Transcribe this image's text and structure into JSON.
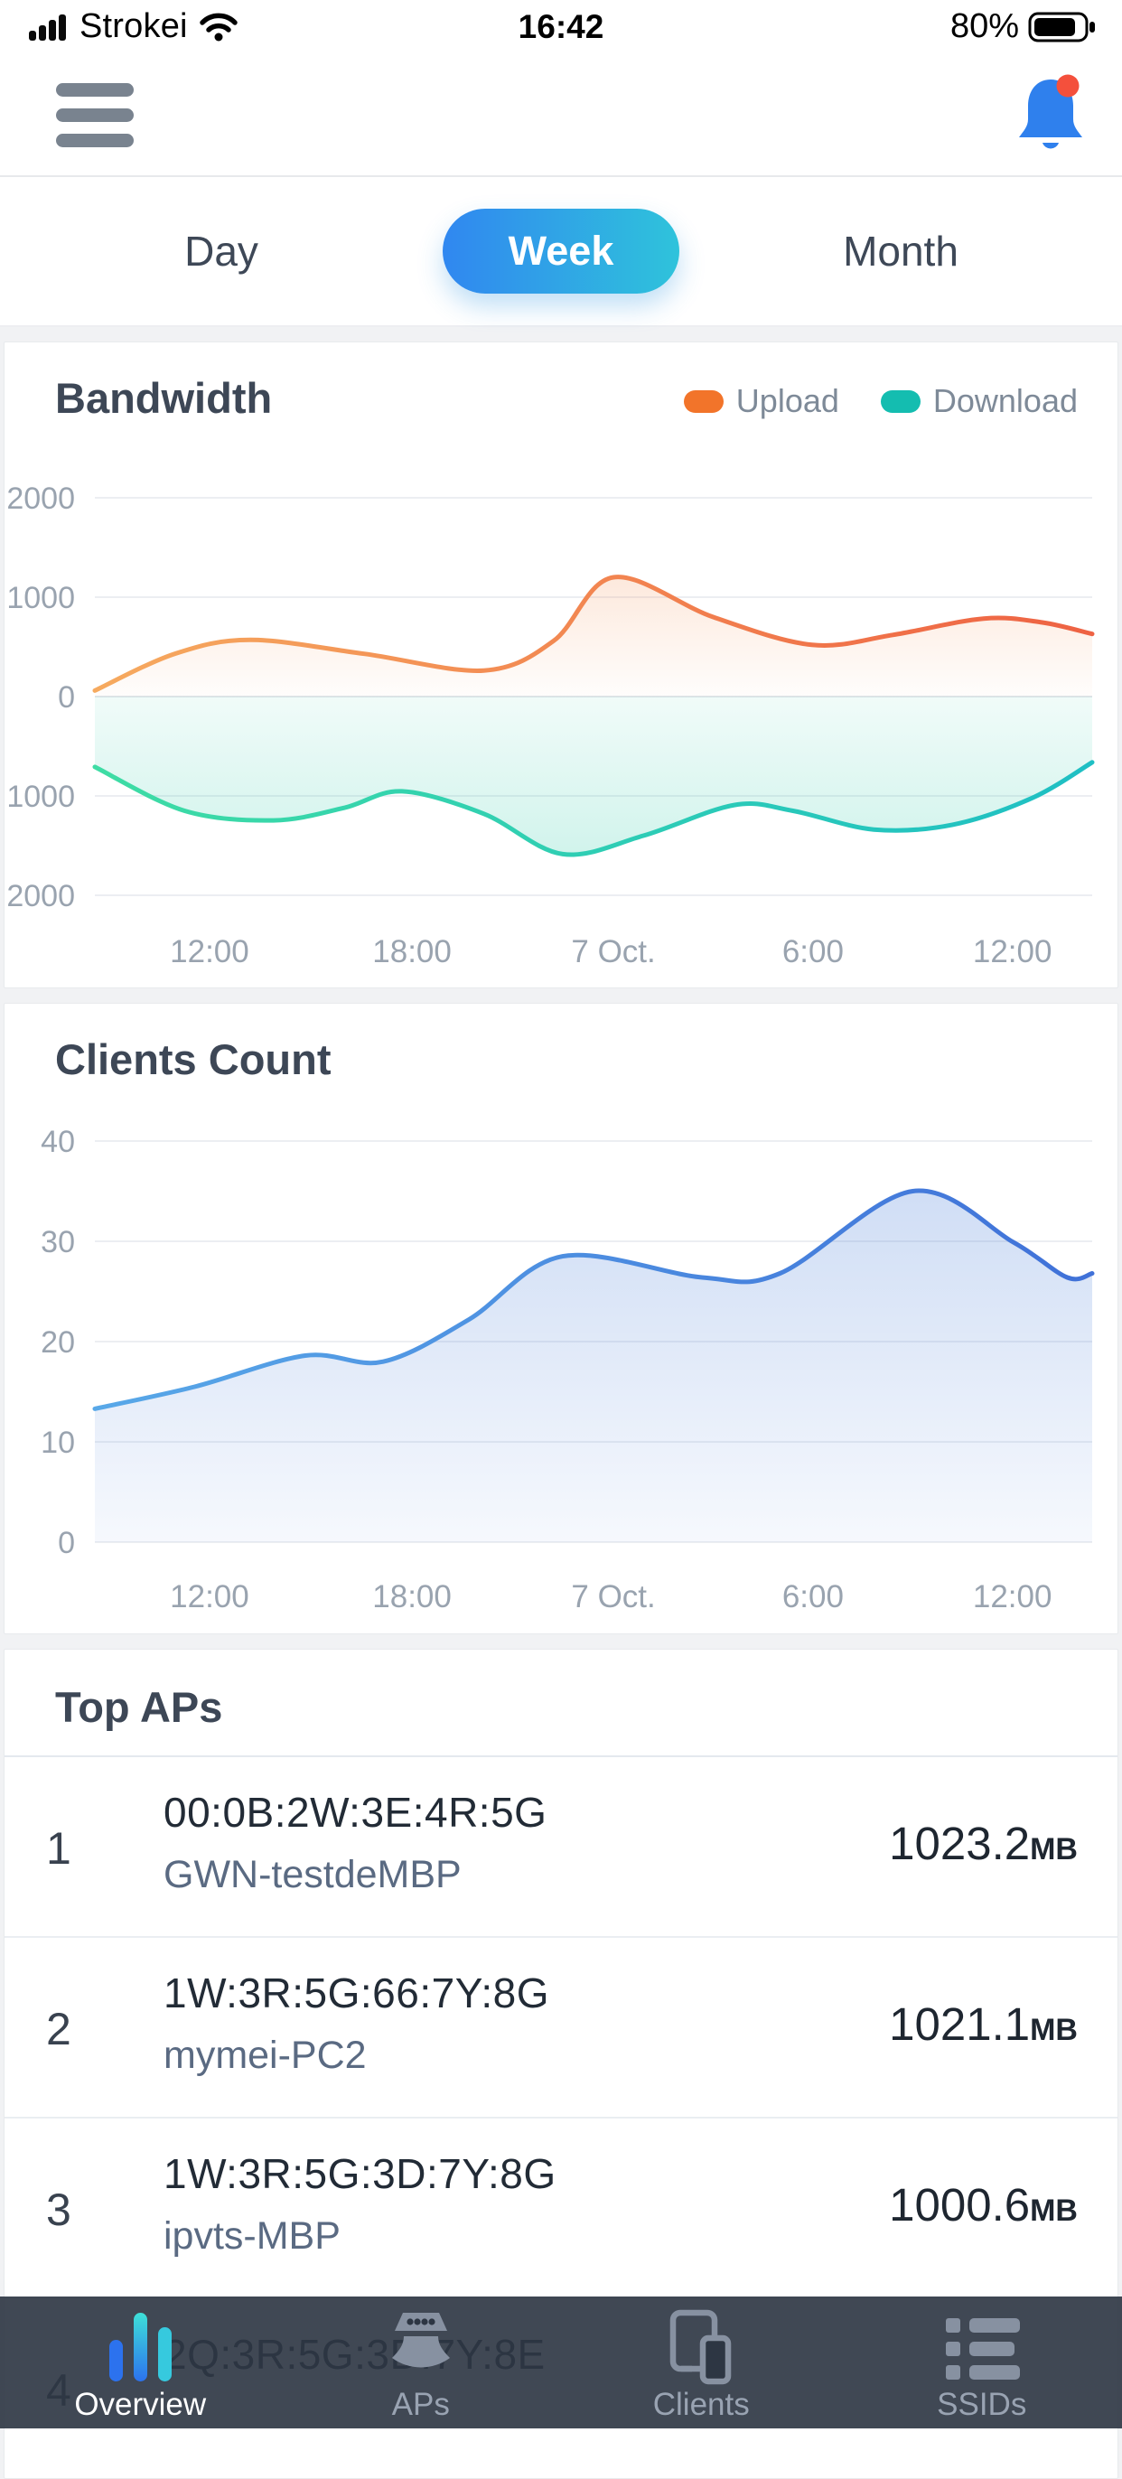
{
  "status_bar": {
    "carrier": "Strokei",
    "time": "16:42",
    "battery_percent": "80%"
  },
  "header": {
    "menu_icon": "hamburger-menu-icon",
    "bell_icon": "notification-bell-icon",
    "bell_color": "#2F80ED",
    "badge_color": "#F4503C",
    "has_notification": true
  },
  "tabs": {
    "items": [
      {
        "label": "Day",
        "active": false
      },
      {
        "label": "Week",
        "active": true
      },
      {
        "label": "Month",
        "active": false
      }
    ],
    "active_gradient": [
      "#3087F0",
      "#2FC3DB"
    ]
  },
  "bandwidth_card": {
    "title": "Bandwidth",
    "legend": [
      {
        "label": "Upload",
        "color": "#F2742A"
      },
      {
        "label": "Download",
        "color": "#14BDB0"
      }
    ]
  },
  "clients_card": {
    "title": "Clients Count"
  },
  "top_aps": {
    "title": "Top APs",
    "rows": [
      {
        "rank": "1",
        "mac": "00:0B:2W:3E:4R:5G",
        "name": "GWN-testdeMBP",
        "value": "1023.2",
        "unit": "MB"
      },
      {
        "rank": "2",
        "mac": "1W:3R:5G:66:7Y:8G",
        "name": "mymei-PC2",
        "value": "1021.1",
        "unit": "MB"
      },
      {
        "rank": "3",
        "mac": "1W:3R:5G:3D:7Y:8G",
        "name": "ipvts-MBP",
        "value": "1000.6",
        "unit": "MB"
      },
      {
        "rank": "4",
        "mac": "2Q:3R:5G:3D:7Y:8E",
        "name": "",
        "value": "",
        "unit": ""
      }
    ]
  },
  "nav": {
    "items": [
      {
        "label": "Overview",
        "icon": "bar-chart-icon",
        "active": true
      },
      {
        "label": "APs",
        "icon": "access-point-icon",
        "active": false
      },
      {
        "label": "Clients",
        "icon": "devices-icon",
        "active": false
      },
      {
        "label": "SSIDs",
        "icon": "list-icon",
        "active": false
      }
    ]
  },
  "chart_data": [
    {
      "id": "bandwidth",
      "type": "area",
      "title": "Bandwidth",
      "unit": "MB",
      "grid": true,
      "legend_position": "top-right",
      "x_ticks": {
        "labels": [
          "12:00",
          "18:00",
          "7 Oct.",
          "6:00",
          "12:00"
        ],
        "fractions": [
          0.115,
          0.318,
          0.52,
          0.72,
          0.92
        ]
      },
      "y_axis": {
        "range": [
          -2000,
          2000
        ],
        "tick_labels": [
          "2000",
          "1000",
          "0",
          "1000",
          "2000"
        ],
        "tick_values": [
          2000,
          1000,
          0,
          -1000,
          -2000
        ],
        "note": "axis labels show absolute MB; Download is mirrored below zero"
      },
      "baseline": 0,
      "series": [
        {
          "name": "Upload",
          "direction": "up",
          "stroke": [
            "#F6AA5F",
            "#EE6243"
          ],
          "fill": "#F49A62",
          "fill_opacity": [
            0.22,
            0.02
          ],
          "points": [
            [
              0,
              60
            ],
            [
              0.08,
              430
            ],
            [
              0.156,
              570
            ],
            [
              0.27,
              430
            ],
            [
              0.39,
              262
            ],
            [
              0.46,
              560
            ],
            [
              0.52,
              1200
            ],
            [
              0.62,
              800
            ],
            [
              0.719,
              520
            ],
            [
              0.8,
              620
            ],
            [
              0.891,
              785
            ],
            [
              0.95,
              745
            ],
            [
              1,
              630
            ]
          ]
        },
        {
          "name": "Download",
          "direction": "down",
          "stroke": [
            "#3EDCA4",
            "#1FBFC4"
          ],
          "fill": "#2FCBA8",
          "fill_opacity": [
            0.07,
            0.22
          ],
          "points": [
            [
              0,
              708
            ],
            [
              0.09,
              1150
            ],
            [
              0.179,
              1246
            ],
            [
              0.25,
              1120
            ],
            [
              0.308,
              954
            ],
            [
              0.39,
              1180
            ],
            [
              0.469,
              1585
            ],
            [
              0.55,
              1400
            ],
            [
              0.641,
              1092
            ],
            [
              0.7,
              1150
            ],
            [
              0.781,
              1338
            ],
            [
              0.86,
              1290
            ],
            [
              0.94,
              1020
            ],
            [
              1,
              662
            ]
          ]
        }
      ]
    },
    {
      "id": "clients",
      "type": "area",
      "title": "Clients Count",
      "grid": true,
      "x_ticks": {
        "labels": [
          "12:00",
          "18:00",
          "7 Oct.",
          "6:00",
          "12:00"
        ],
        "fractions": [
          0.115,
          0.318,
          0.52,
          0.72,
          0.92
        ]
      },
      "y_axis": {
        "range": [
          0,
          40
        ],
        "tick_labels": [
          "40",
          "30",
          "20",
          "10",
          "0"
        ],
        "tick_values": [
          40,
          30,
          20,
          10,
          0
        ]
      },
      "baseline": 0,
      "series": [
        {
          "name": "Clients",
          "direction": "up",
          "stroke": [
            "#58A8E8",
            "#4071D8"
          ],
          "fill": "#4A7FD9",
          "fill_opacity": [
            0.26,
            0.05
          ],
          "points": [
            [
              0,
              13.3
            ],
            [
              0.1,
              15.5
            ],
            [
              0.211,
              18.6
            ],
            [
              0.289,
              18.0
            ],
            [
              0.375,
              22.2
            ],
            [
              0.469,
              28.5
            ],
            [
              0.609,
              26.4
            ],
            [
              0.687,
              26.8
            ],
            [
              0.82,
              35.0
            ],
            [
              0.921,
              29.9
            ],
            [
              0.975,
              26.4
            ],
            [
              1,
              26.8
            ]
          ]
        }
      ]
    }
  ]
}
